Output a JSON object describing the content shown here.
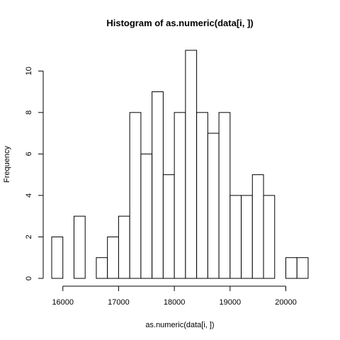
{
  "chart_data": {
    "type": "bar",
    "subtype": "histogram",
    "title": "Histogram of as.numeric(data[i, ])",
    "xlabel": "as.numeric(data[i, ])",
    "ylabel": "Frequency",
    "bin_width": 200,
    "bins": [
      {
        "start": 15800,
        "end": 16000,
        "count": 2
      },
      {
        "start": 16000,
        "end": 16200,
        "count": 0
      },
      {
        "start": 16200,
        "end": 16400,
        "count": 3
      },
      {
        "start": 16400,
        "end": 16600,
        "count": 0
      },
      {
        "start": 16600,
        "end": 16800,
        "count": 1
      },
      {
        "start": 16800,
        "end": 17000,
        "count": 2
      },
      {
        "start": 17000,
        "end": 17200,
        "count": 3
      },
      {
        "start": 17200,
        "end": 17400,
        "count": 8
      },
      {
        "start": 17400,
        "end": 17600,
        "count": 6
      },
      {
        "start": 17600,
        "end": 17800,
        "count": 9
      },
      {
        "start": 17800,
        "end": 18000,
        "count": 5
      },
      {
        "start": 18000,
        "end": 18200,
        "count": 8
      },
      {
        "start": 18200,
        "end": 18400,
        "count": 11
      },
      {
        "start": 18400,
        "end": 18600,
        "count": 8
      },
      {
        "start": 18600,
        "end": 18800,
        "count": 7
      },
      {
        "start": 18800,
        "end": 19000,
        "count": 8
      },
      {
        "start": 19000,
        "end": 19200,
        "count": 4
      },
      {
        "start": 19200,
        "end": 19400,
        "count": 4
      },
      {
        "start": 19400,
        "end": 19600,
        "count": 5
      },
      {
        "start": 19600,
        "end": 19800,
        "count": 4
      },
      {
        "start": 19800,
        "end": 20000,
        "count": 0
      },
      {
        "start": 20000,
        "end": 20200,
        "count": 1
      },
      {
        "start": 20200,
        "end": 20400,
        "count": 1
      }
    ],
    "xlim": [
      15800,
      20400
    ],
    "ylim": [
      0,
      11
    ],
    "x_ticks": [
      16000,
      17000,
      18000,
      19000,
      20000
    ],
    "x_tick_labels": [
      "16000",
      "17000",
      "18000",
      "19000",
      "20000"
    ],
    "y_ticks": [
      0,
      2,
      4,
      6,
      8,
      10
    ],
    "y_tick_labels": [
      "0",
      "2",
      "4",
      "6",
      "8",
      "10"
    ],
    "grid": false,
    "colors": {
      "bar_fill": "#ffffff",
      "bar_stroke": "#000000",
      "text": "#000000"
    }
  }
}
